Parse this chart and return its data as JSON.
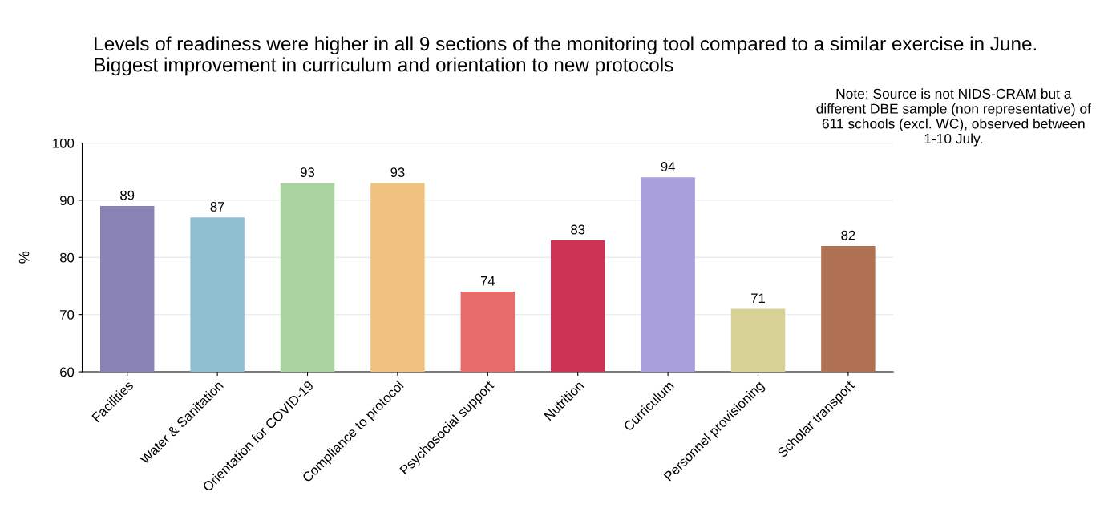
{
  "chart_data": {
    "type": "bar",
    "title": "Levels of readiness were higher in all 9 sections of the monitoring tool compared to a similar exercise in June. Biggest improvement in curriculum and orientation to new protocols",
    "ylabel": "%",
    "annotations": [
      "Note: Source is not NIDS-CRAM but a different DBE sample (non representative) of 611 schools (excl. WC), observed between 1-10 July."
    ],
    "categories": [
      "Facilities",
      "Water & Sanitation",
      "Orientation for COVID-19",
      "Compliance to protocol",
      "Psychosocial support",
      "Nutrition",
      "Curriculum",
      "Personnel provisioning",
      "Scholar transport"
    ],
    "values": [
      89,
      87,
      93,
      93,
      74,
      83,
      94,
      71,
      82
    ],
    "colors": [
      "#8783b5",
      "#8fbfd0",
      "#a8d3a0",
      "#f0c27f",
      "#e86b6b",
      "#cc3355",
      "#a89fdc",
      "#d7d196",
      "#b07152"
    ],
    "ylim": [
      60,
      100
    ],
    "yticks": [
      60,
      70,
      80,
      90,
      100
    ],
    "grid": "y",
    "data_labels": true
  }
}
